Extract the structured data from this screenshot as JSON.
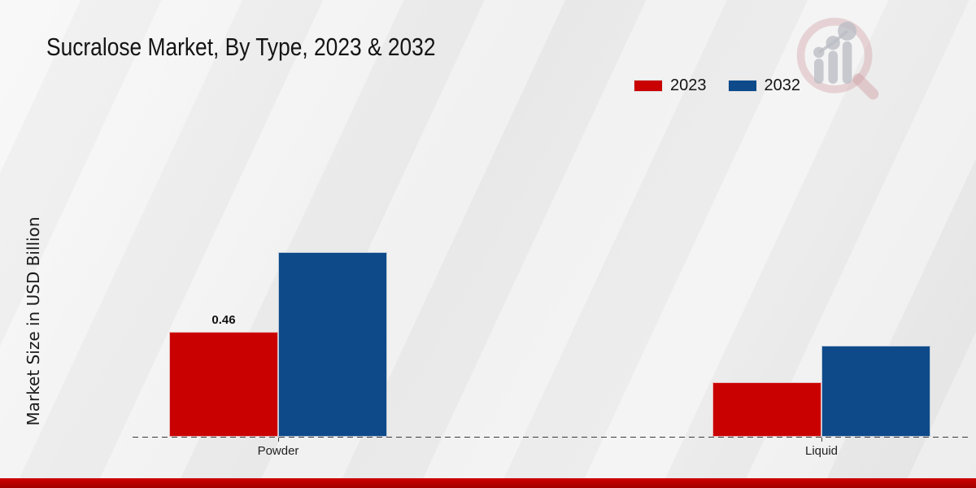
{
  "title": "Sucralose Market, By Type, 2023 & 2032",
  "y_axis_label": "Market Size in USD Billion",
  "legend": {
    "position": "top-right",
    "items": [
      {
        "label": "2023",
        "color": "#c90101"
      },
      {
        "label": "2032",
        "color": "#0e4a8a"
      }
    ]
  },
  "icons": {
    "watermark": "magnifier-bar-chart-logo"
  },
  "colors": {
    "background": "#ededed",
    "series_2023": "#c90101",
    "series_2032": "#0e4a8a",
    "axis": "#3c3c3c",
    "bottom_strip": "#c00000",
    "text": "#141414"
  },
  "chart_data": {
    "type": "bar",
    "title": "Sucralose Market, By Type, 2023 & 2032",
    "categories": [
      "Powder",
      "Liquid"
    ],
    "series": [
      {
        "name": "2023",
        "color": "#c90101",
        "values": [
          0.46,
          0.24
        ],
        "data_labels": [
          "0.46",
          ""
        ]
      },
      {
        "name": "2032",
        "color": "#0e4a8a",
        "values": [
          0.81,
          0.4
        ],
        "data_labels": [
          "",
          ""
        ]
      }
    ],
    "xlabel": "",
    "ylabel": "Market Size in USD Billion",
    "ylim": [
      0,
      1.6
    ],
    "grid": false,
    "legend_position": "top-right",
    "baseline_style": "dashed",
    "y_axis_ticks_visible": false
  }
}
